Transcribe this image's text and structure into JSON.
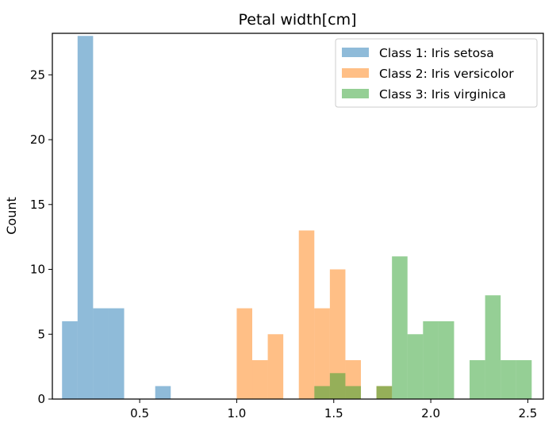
{
  "chart_data": {
    "type": "histogram",
    "title": "Petal width[cm]",
    "xlabel": "",
    "ylabel": "Count",
    "xlim": [
      0.05,
      2.58
    ],
    "ylim": [
      0,
      28.2
    ],
    "xticks": [
      0.5,
      1.0,
      1.5,
      2.0,
      2.5
    ],
    "xtick_labels": [
      "0.5",
      "1.0",
      "1.5",
      "2.0",
      "2.5"
    ],
    "yticks": [
      0,
      5,
      10,
      15,
      20,
      25
    ],
    "ytick_labels": [
      "0",
      "5",
      "10",
      "15",
      "20",
      "25"
    ],
    "grid": false,
    "legend_position": "top-right",
    "series": [
      {
        "name": "Class 1: Iris setosa",
        "color": "#1f77b4",
        "opacity": 0.5,
        "bins": [
          {
            "x0": 0.1,
            "x1": 0.18,
            "count": 6
          },
          {
            "x0": 0.18,
            "x1": 0.26,
            "count": 28
          },
          {
            "x0": 0.26,
            "x1": 0.34,
            "count": 7
          },
          {
            "x0": 0.34,
            "x1": 0.42,
            "count": 7
          },
          {
            "x0": 0.58,
            "x1": 0.66,
            "count": 1
          }
        ]
      },
      {
        "name": "Class 2: Iris versicolor",
        "color": "#ff7f0e",
        "opacity": 0.5,
        "bins": [
          {
            "x0": 1.0,
            "x1": 1.08,
            "count": 7
          },
          {
            "x0": 1.08,
            "x1": 1.16,
            "count": 3
          },
          {
            "x0": 1.16,
            "x1": 1.24,
            "count": 5
          },
          {
            "x0": 1.32,
            "x1": 1.4,
            "count": 13
          },
          {
            "x0": 1.4,
            "x1": 1.48,
            "count": 7
          },
          {
            "x0": 1.48,
            "x1": 1.56,
            "count": 10
          },
          {
            "x0": 1.56,
            "x1": 1.64,
            "count": 3
          },
          {
            "x0": 1.72,
            "x1": 1.8,
            "count": 1
          }
        ]
      },
      {
        "name": "Class 3: Iris virginica",
        "color": "#2ca02c",
        "opacity": 0.5,
        "bins": [
          {
            "x0": 1.4,
            "x1": 1.48,
            "count": 1
          },
          {
            "x0": 1.48,
            "x1": 1.56,
            "count": 2
          },
          {
            "x0": 1.56,
            "x1": 1.64,
            "count": 1
          },
          {
            "x0": 1.72,
            "x1": 1.8,
            "count": 1
          },
          {
            "x0": 1.8,
            "x1": 1.88,
            "count": 11
          },
          {
            "x0": 1.88,
            "x1": 1.96,
            "count": 5
          },
          {
            "x0": 1.96,
            "x1": 2.04,
            "count": 6
          },
          {
            "x0": 2.04,
            "x1": 2.12,
            "count": 6
          },
          {
            "x0": 2.2,
            "x1": 2.28,
            "count": 3
          },
          {
            "x0": 2.28,
            "x1": 2.36,
            "count": 8
          },
          {
            "x0": 2.36,
            "x1": 2.44,
            "count": 3
          },
          {
            "x0": 2.44,
            "x1": 2.52,
            "count": 3
          }
        ]
      }
    ]
  }
}
